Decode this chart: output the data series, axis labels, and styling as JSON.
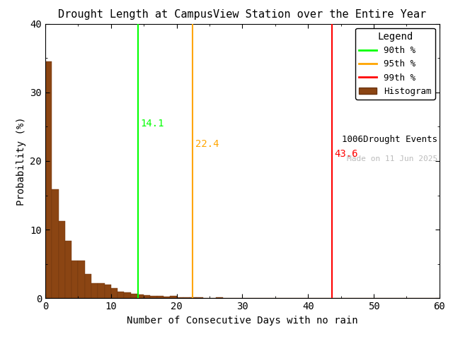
{
  "title": "Drought Length at CampusView Station over the Entire Year",
  "xlabel": "Number of Consecutive Days with no rain",
  "ylabel": "Probability (%)",
  "xlim": [
    0,
    60
  ],
  "ylim": [
    0,
    40
  ],
  "xticks": [
    0,
    10,
    20,
    30,
    40,
    50,
    60
  ],
  "yticks": [
    0,
    10,
    20,
    30,
    40
  ],
  "bar_color": "#8B4513",
  "bar_edgecolor": "#6B3410",
  "percentile_90": 14.1,
  "percentile_95": 22.4,
  "percentile_99": 43.6,
  "color_90": "#00FF00",
  "color_95": "#FFA500",
  "color_99": "#FF0000",
  "n_events": 1006,
  "watermark": "Made on 11 Jun 2025",
  "watermark_color": "#BBBBBB",
  "bar_heights": [
    34.5,
    15.9,
    11.3,
    8.4,
    5.5,
    5.5,
    3.5,
    2.2,
    2.2,
    2.0,
    1.5,
    1.0,
    0.85,
    0.7,
    0.55,
    0.5,
    0.4,
    0.3,
    0.2,
    0.3,
    0.1,
    0.1,
    0.1,
    0.15,
    0.05,
    0.05,
    0.1,
    0.05,
    0.05,
    0.05,
    0.05,
    0.02,
    0.02,
    0.02,
    0.02,
    0.02,
    0.02,
    0.02,
    0.02,
    0.02,
    0.02,
    0.02,
    0.02,
    0.05,
    0.02,
    0.02,
    0.02,
    0.02,
    0.02,
    0.02,
    0.02,
    0.02,
    0.02,
    0.02,
    0.02,
    0.02,
    0.02,
    0.02,
    0.02,
    0.02
  ],
  "background_color": "#FFFFFF",
  "font_family": "monospace",
  "title_fontsize": 11,
  "label_fontsize": 10,
  "tick_fontsize": 10,
  "legend_fontsize": 9,
  "annot_fontsize": 10,
  "watermark_fontsize": 8
}
